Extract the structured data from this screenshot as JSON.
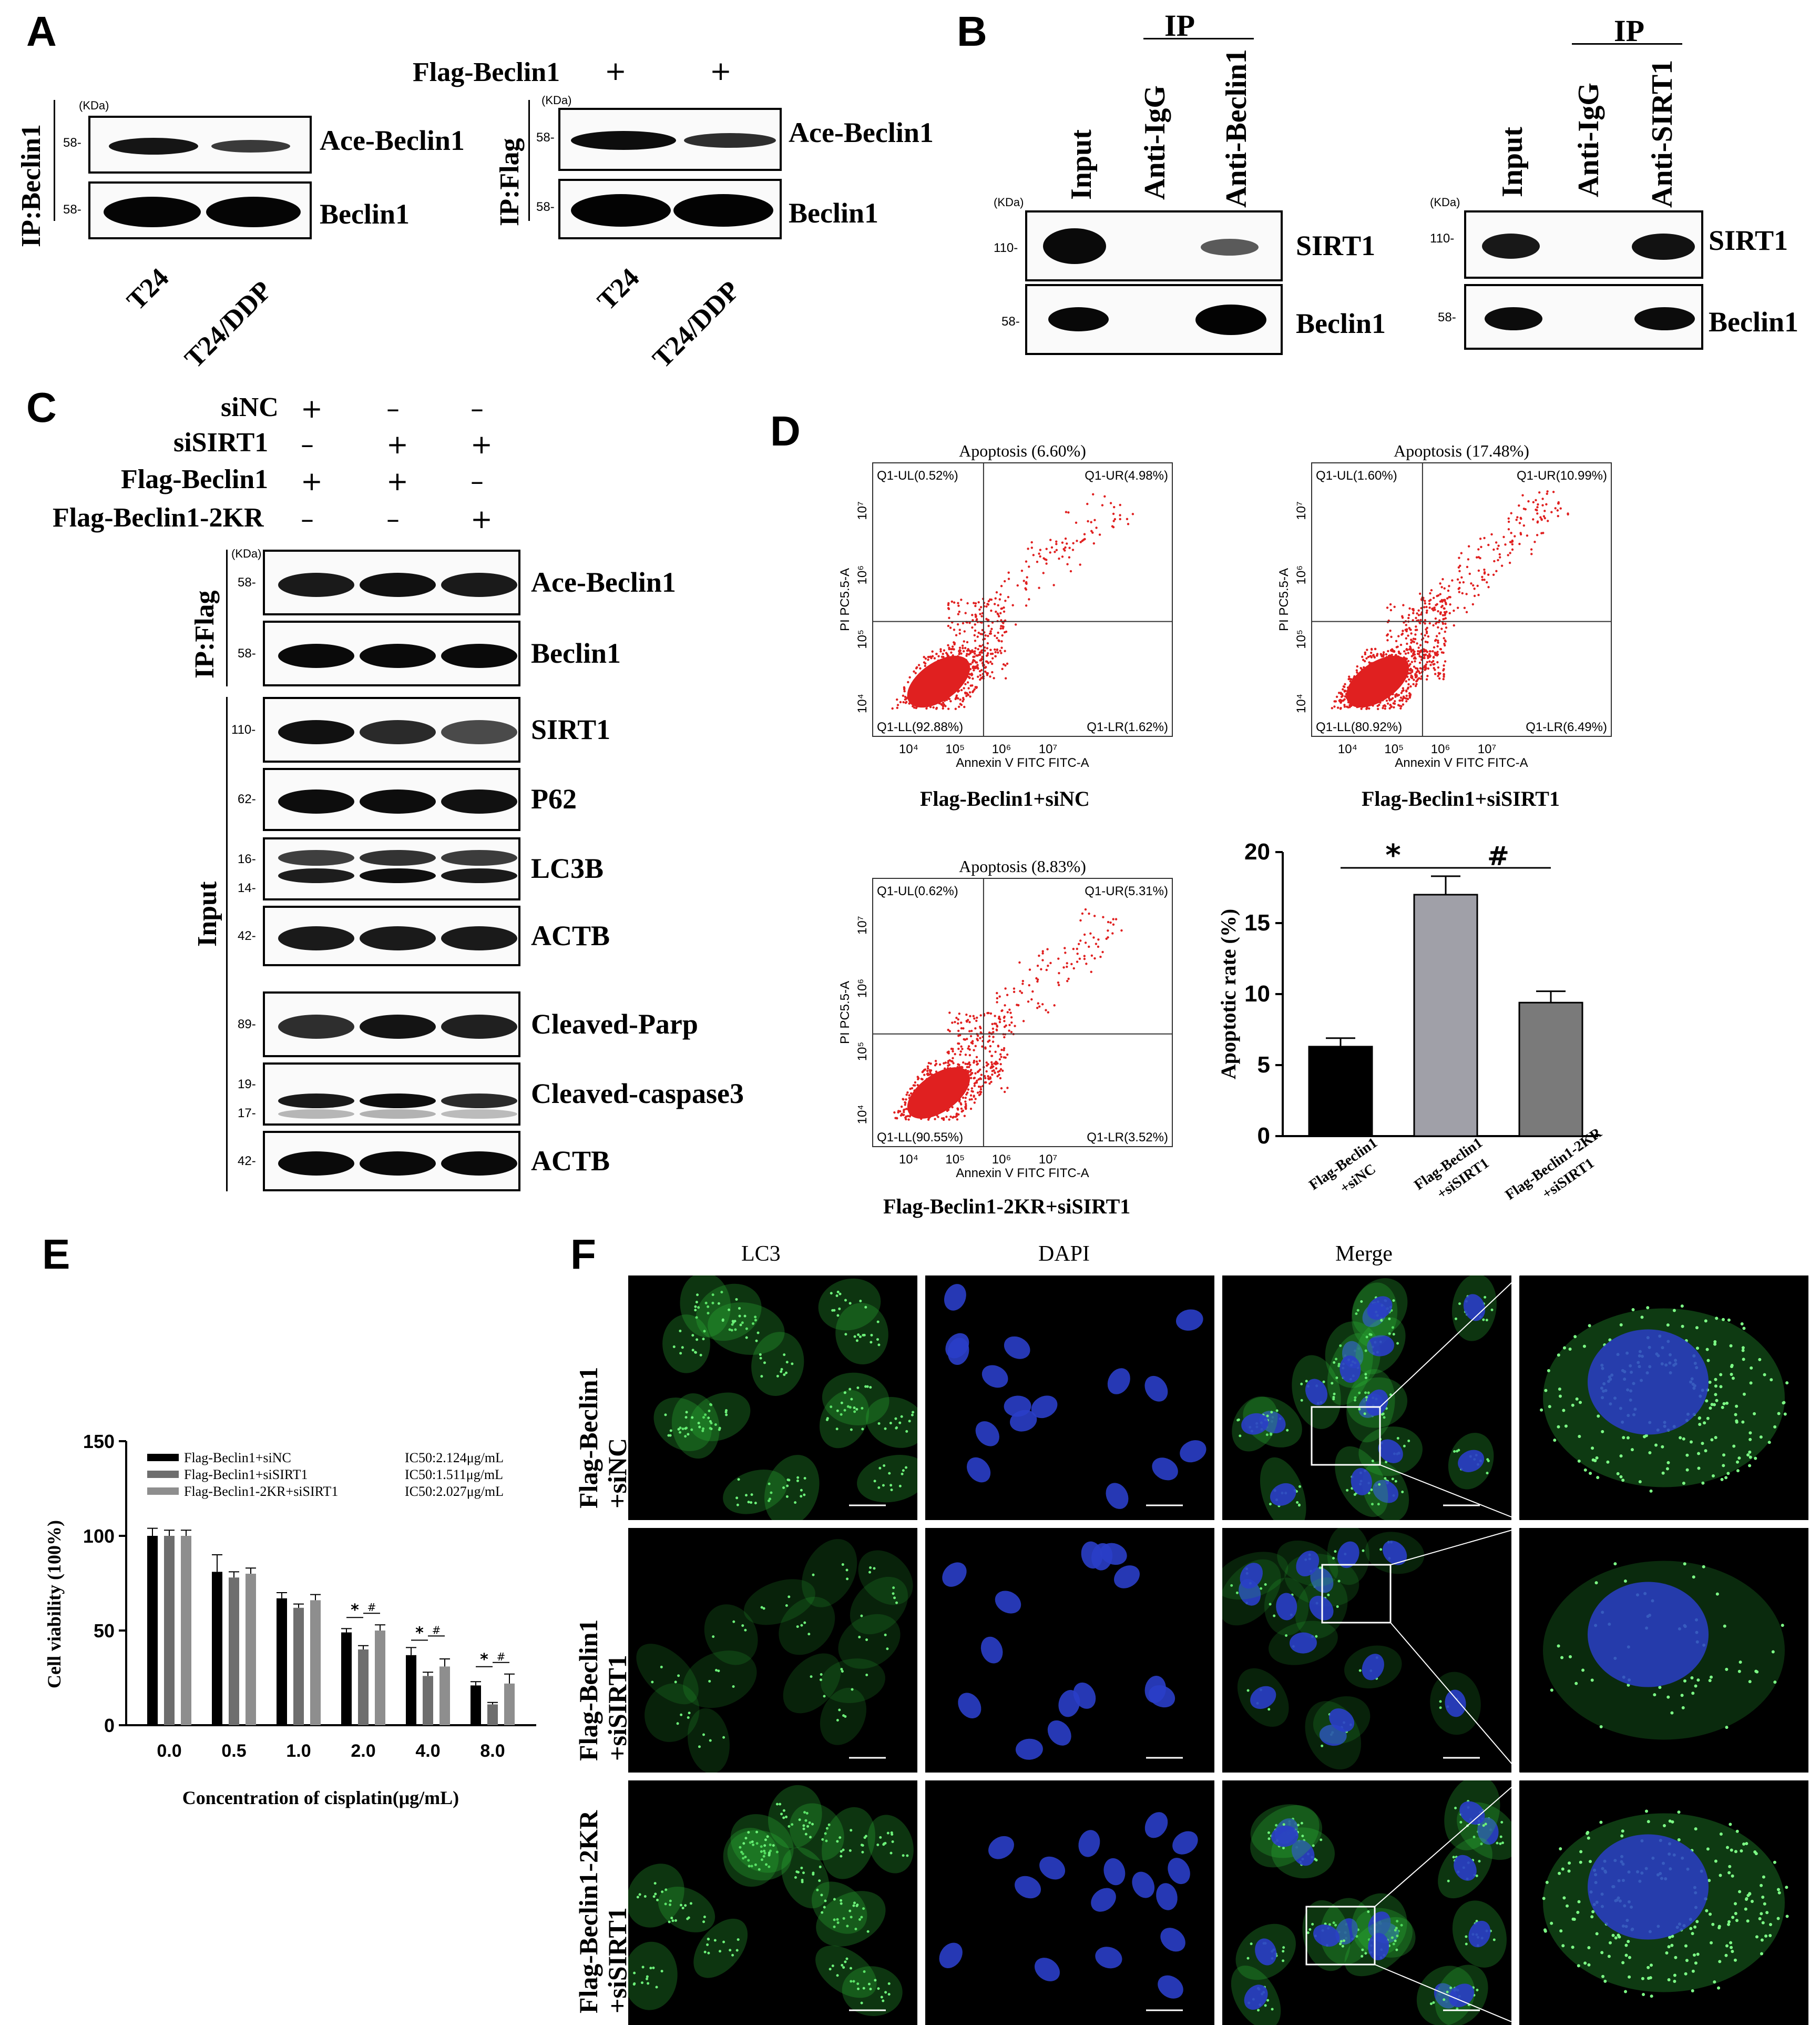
{
  "panels": {
    "A": {
      "letter": "A",
      "kda": "(KDa)",
      "left": {
        "ip_label": "IP:Beclin1",
        "rows": [
          {
            "label": "Ace-Beclin1",
            "mw": "58-"
          },
          {
            "label": "Beclin1",
            "mw": "58-"
          }
        ],
        "lanes": [
          "T24",
          "T24/DDP"
        ]
      },
      "right": {
        "condition_label": "Flag-Beclin1",
        "signs": [
          "+",
          "+"
        ],
        "ip_label": "IP:Flag",
        "rows": [
          {
            "label": "Ace-Beclin1",
            "mw": "58-"
          },
          {
            "label": "Beclin1",
            "mw": "58-"
          }
        ],
        "lanes": [
          "T24",
          "T24/DDP"
        ]
      }
    },
    "B": {
      "letter": "B",
      "kda": "(KDa)",
      "left": {
        "ip_header": "IP",
        "lanes": [
          "Input",
          "Anti-IgG",
          "Anti-Beclin1"
        ],
        "rows": [
          {
            "label": "SIRT1",
            "mw": "110-"
          },
          {
            "label": "Beclin1",
            "mw": "58-"
          }
        ]
      },
      "right": {
        "ip_header": "IP",
        "lanes": [
          "Input",
          "Anti-IgG",
          "Anti-SIRT1"
        ],
        "rows": [
          {
            "label": "SIRT1",
            "mw": "110-"
          },
          {
            "label": "Beclin1",
            "mw": "58-"
          }
        ]
      }
    },
    "C": {
      "letter": "C",
      "kda": "(KDa)",
      "conditions": [
        {
          "label": "siNC",
          "signs": [
            "+",
            "–",
            "–"
          ]
        },
        {
          "label": "siSIRT1",
          "signs": [
            "–",
            "+",
            "+"
          ]
        },
        {
          "label": "Flag-Beclin1",
          "signs": [
            "+",
            "+",
            "–"
          ]
        },
        {
          "label": "Flag-Beclin1-2KR",
          "signs": [
            "–",
            "–",
            "+"
          ]
        }
      ],
      "ip_label": "IP:Flag",
      "input_label": "Input",
      "rows": [
        {
          "label": "Ace-Beclin1",
          "mw": [
            "58-"
          ]
        },
        {
          "label": "Beclin1",
          "mw": [
            "58-"
          ]
        },
        {
          "label": "SIRT1",
          "mw": [
            "110-"
          ]
        },
        {
          "label": "P62",
          "mw": [
            "62-"
          ]
        },
        {
          "label": "LC3B",
          "mw": [
            "16-",
            "14-"
          ]
        },
        {
          "label": "ACTB",
          "mw": [
            "42-"
          ]
        },
        {
          "label": "Cleaved-Parp",
          "mw": [
            "89-"
          ]
        },
        {
          "label": "Cleaved-caspase3",
          "mw": [
            "19-",
            "17-"
          ]
        },
        {
          "label": "ACTB",
          "mw": [
            "42-"
          ]
        }
      ]
    },
    "D": {
      "letter": "D",
      "plots": [
        {
          "title": "Apoptosis (6.60%)",
          "UL": "Q1-UL(0.52%)",
          "UR": "Q1-UR(4.98%)",
          "LL": "Q1-LL(92.88%)",
          "LR": "Q1-LR(1.62%)",
          "caption": "Flag-Beclin1+siNC"
        },
        {
          "title": "Apoptosis (17.48%)",
          "UL": "Q1-UL(1.60%)",
          "UR": "Q1-UR(10.99%)",
          "LL": "Q1-LL(80.92%)",
          "LR": "Q1-LR(6.49%)",
          "caption": "Flag-Beclin1+siSIRT1"
        },
        {
          "title": "Apoptosis (8.83%)",
          "UL": "Q1-UL(0.62%)",
          "UR": "Q1-UR(5.31%)",
          "LL": "Q1-LL(90.55%)",
          "LR": "Q1-LR(3.52%)",
          "caption": "Flag-Beclin1-2KR+siSIRT1"
        }
      ],
      "axis_x": "Annexin V FITC FITC-A",
      "axis_y": "PI PC5.5-A",
      "log_ticks": [
        "10⁴",
        "10⁵",
        "10⁶",
        "10⁷"
      ]
    },
    "E": {
      "letter": "E"
    },
    "F": {
      "letter": "F",
      "col_titles": [
        "LC3",
        "DAPI",
        "Merge"
      ],
      "row_labels": [
        [
          "Flag-Beclin1",
          "+siNC"
        ],
        [
          "Flag-Beclin1",
          "+siSIRT1"
        ],
        [
          "Flag-Beclin1-2KR",
          "+siSIRT1"
        ]
      ],
      "colors": {
        "lc3": "#2fbf3a",
        "dapi": "#2a3ec8",
        "background": "#000000"
      }
    }
  },
  "chart_data": [
    {
      "type": "bar",
      "title": "",
      "xlabel": "",
      "ylabel": "Apoptotic rate (%)",
      "ylim": [
        0,
        20
      ],
      "yticks": [
        0,
        5,
        10,
        15,
        20
      ],
      "categories": [
        "Flag-Beclin1+siNC",
        "Flag-Beclin1+siSIRT1",
        "Flag-Beclin1-2KR+siSIRT1"
      ],
      "category_lines": [
        [
          "Flag-Beclin1",
          "+siNC"
        ],
        [
          "Flag-Beclin1",
          "+siSIRT1"
        ],
        [
          "Flag-Beclin1-2KR",
          "+siSIRT1"
        ]
      ],
      "values": [
        6.3,
        17.0,
        9.4
      ],
      "errors": [
        0.6,
        1.3,
        0.8
      ],
      "colors": [
        "#000000",
        "#a0a0a8",
        "#7a7a7a"
      ],
      "significance": [
        "*",
        "#"
      ]
    },
    {
      "type": "bar",
      "title": "",
      "xlabel": "Concentration of cisplatin(μg/mL)",
      "ylabel": "Cell viability (100%)",
      "ylim": [
        0,
        150
      ],
      "yticks": [
        0,
        50,
        100,
        150
      ],
      "categories": [
        "0.0",
        "0.5",
        "1.0",
        "2.0",
        "4.0",
        "8.0"
      ],
      "series": [
        {
          "name": "Flag-Beclin1+siNC",
          "ic50": "IC50:2.124μg/mL",
          "color": "#000000",
          "values": [
            100,
            81,
            67,
            49,
            37,
            21
          ],
          "errors": [
            4,
            9,
            3,
            2,
            4,
            2
          ]
        },
        {
          "name": "Flag-Beclin1+siSIRT1",
          "ic50": "IC50:1.511μg/mL",
          "color": "#6e6e6e",
          "values": [
            100,
            78,
            62,
            40,
            26,
            11
          ],
          "errors": [
            3,
            3,
            2,
            2,
            2,
            1
          ]
        },
        {
          "name": "Flag-Beclin1-2KR+siSIRT1",
          "ic50": "IC50:2.027μg/mL",
          "color": "#8e8e8e",
          "values": [
            100,
            80,
            66,
            50,
            31,
            22
          ],
          "errors": [
            3,
            3,
            3,
            3,
            4,
            5
          ]
        }
      ],
      "significance": [
        {
          "index": 3,
          "marks": [
            "*",
            "#"
          ]
        },
        {
          "index": 4,
          "marks": [
            "*",
            "#"
          ]
        },
        {
          "index": 5,
          "marks": [
            "*",
            "#"
          ]
        }
      ]
    }
  ]
}
